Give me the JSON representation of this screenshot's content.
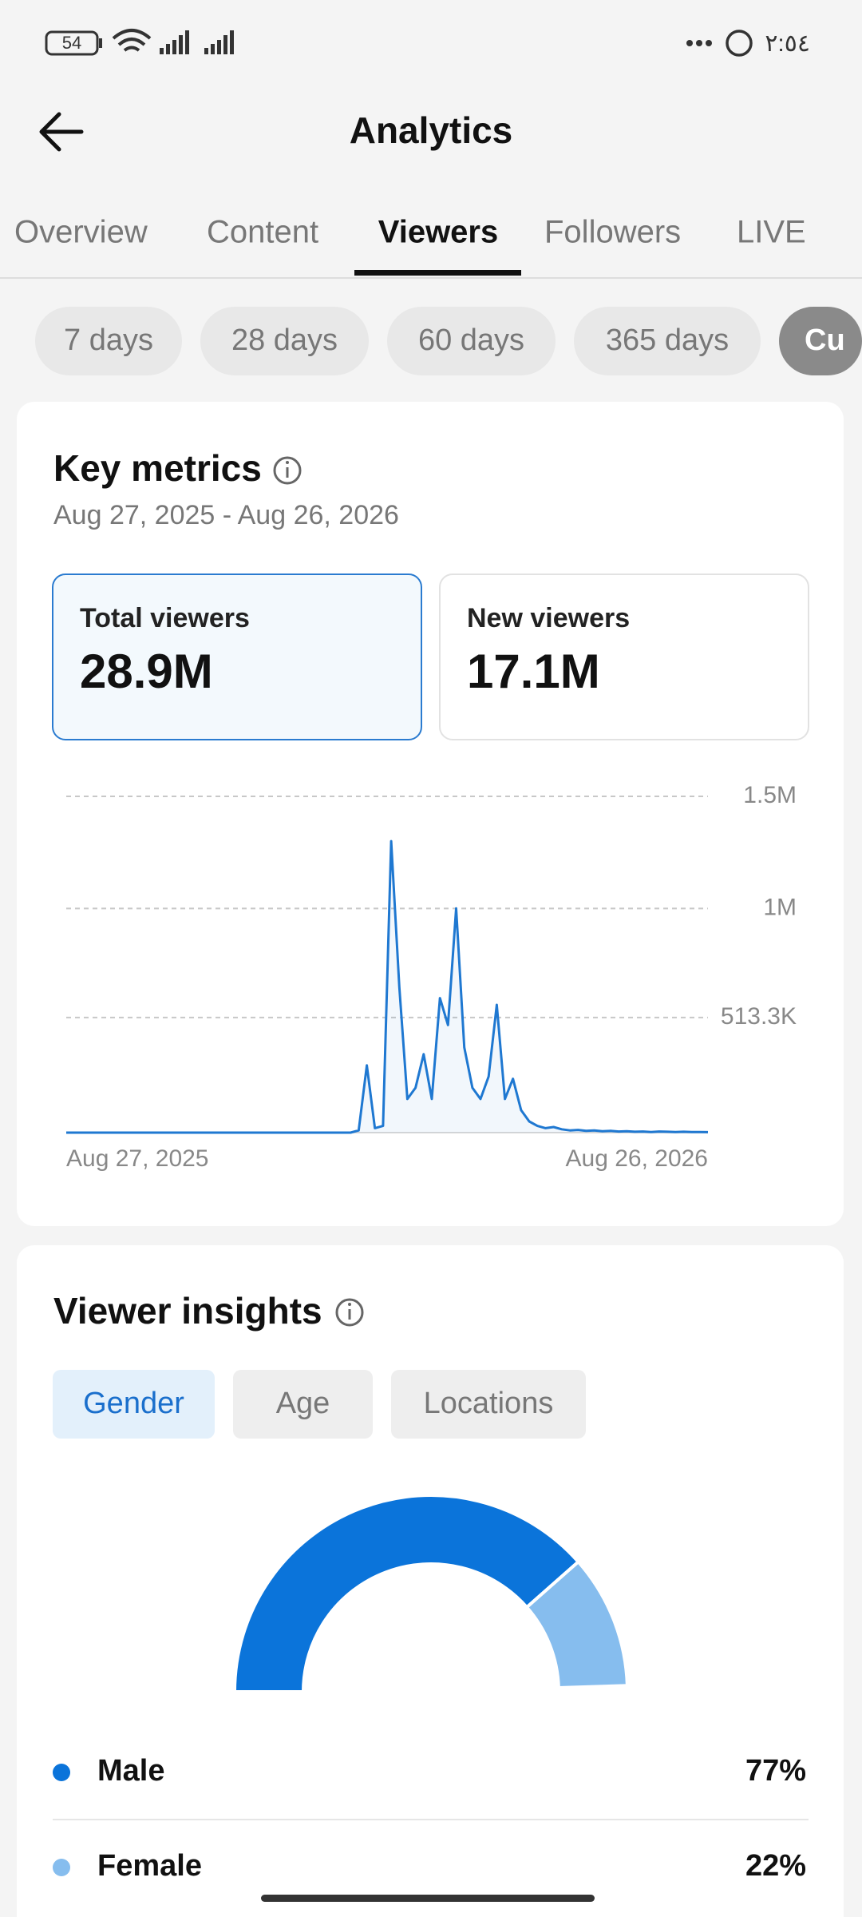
{
  "status_bar": {
    "battery": "54",
    "time": "٢:٥٤"
  },
  "header": {
    "title": "Analytics"
  },
  "tabs": [
    "Overview",
    "Content",
    "Viewers",
    "Followers",
    "LIVE"
  ],
  "periods": [
    "7 days",
    "28 days",
    "60 days",
    "365 days",
    "Cu"
  ],
  "key_metrics": {
    "title": "Key metrics",
    "date_range": "Aug 27, 2025 - Aug 26, 2026",
    "cards": [
      {
        "label": "Total viewers",
        "value": "28.9M"
      },
      {
        "label": "New viewers",
        "value": "17.1M"
      }
    ]
  },
  "viewer_insights": {
    "title": "Viewer insights",
    "tabs": [
      "Gender",
      "Age",
      "Locations"
    ]
  },
  "chart_data": [
    {
      "type": "line",
      "categories": [
        "Aug 27, 2025",
        null,
        null,
        null,
        null,
        null,
        null,
        null,
        null,
        null,
        null,
        null,
        null,
        null,
        null,
        null,
        null,
        null,
        null,
        null,
        null,
        null,
        null,
        null,
        null,
        null,
        null,
        null,
        null,
        null,
        null,
        null,
        null,
        null,
        null,
        null,
        null,
        null,
        null,
        null,
        null,
        null,
        null,
        null,
        null,
        null,
        null,
        null,
        null,
        null,
        null,
        null,
        null,
        null,
        null,
        null,
        null,
        null,
        null,
        null,
        null,
        null,
        null,
        null,
        null,
        null,
        null,
        null,
        null,
        null,
        null,
        null,
        null,
        null,
        null,
        null,
        null,
        null,
        null,
        "Aug 26, 2026"
      ],
      "values": [
        0,
        0,
        0,
        0,
        0,
        0,
        0,
        0,
        0,
        0,
        0,
        0,
        0,
        0,
        0,
        0,
        0,
        0,
        0,
        0,
        0,
        0,
        0,
        0,
        0,
        0,
        0,
        0,
        0,
        0,
        0,
        0,
        0,
        0,
        0,
        0,
        10000,
        300000,
        20000,
        30000,
        1300000,
        650000,
        150000,
        200000,
        350000,
        150000,
        600000,
        480000,
        1000000,
        380000,
        200000,
        150000,
        250000,
        570000,
        150000,
        240000,
        100000,
        50000,
        30000,
        20000,
        25000,
        15000,
        10000,
        12000,
        8000,
        10000,
        6000,
        8000,
        5000,
        6000,
        4000,
        5000,
        3000,
        5000,
        4000,
        3000,
        4000,
        3000,
        3000,
        2000
      ],
      "color": "#1f78d1",
      "ylim": [
        0,
        1500000
      ],
      "yticks": [
        {
          "value": 1500000,
          "label": "1.5M"
        },
        {
          "value": 1000000,
          "label": "1M"
        },
        {
          "value": 513300,
          "label": "513.3K"
        }
      ],
      "grid": true
    },
    {
      "type": "pie",
      "categories": [
        "Male",
        "Female"
      ],
      "values": [
        77,
        22
      ],
      "value_labels": [
        "77%",
        "22%"
      ],
      "colors": [
        "#0b74da",
        "#86bdee"
      ]
    }
  ]
}
